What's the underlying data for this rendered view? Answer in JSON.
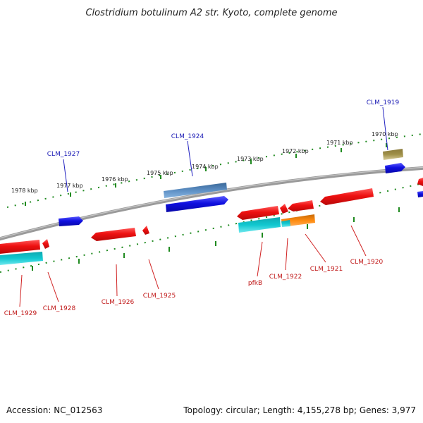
{
  "title": "Clostridium botulinum A2 str. Kyoto, complete genome",
  "footer": {
    "accession": "Accession: NC_012563",
    "topology": "Topology: circular; Length: 4,155,278 bp; Genes: 3,977"
  },
  "colors": {
    "backbone": "#8a8a8a",
    "tick": "#1f8a1f",
    "gene_red": "#ee1111",
    "gene_blue": "#1010e0",
    "gene_steel": "#4a7ab0",
    "gene_cyan": "#10c8d0",
    "gene_orange": "#ff8c10",
    "gene_olive": "#a09048",
    "label_blue": "#1a1ab5",
    "label_red": "#c01818"
  },
  "tick_labels": [
    "1978 kbp",
    "1977 kbp",
    "1976 kbp",
    "1975 kbp",
    "1974 kbp",
    "1973 kbp",
    "1972 kbp",
    "1971 kbp",
    "1970 kbp"
  ],
  "gene_labels_forward": [
    "CLM_1927",
    "CLM_1924",
    "CLM_1919"
  ],
  "gene_labels_reverse": [
    "CLM_1929",
    "CLM_1928",
    "CLM_1926",
    "CLM_1925",
    "pfkB",
    "CLM_1922",
    "CLM_1921",
    "CLM_1920"
  ]
}
